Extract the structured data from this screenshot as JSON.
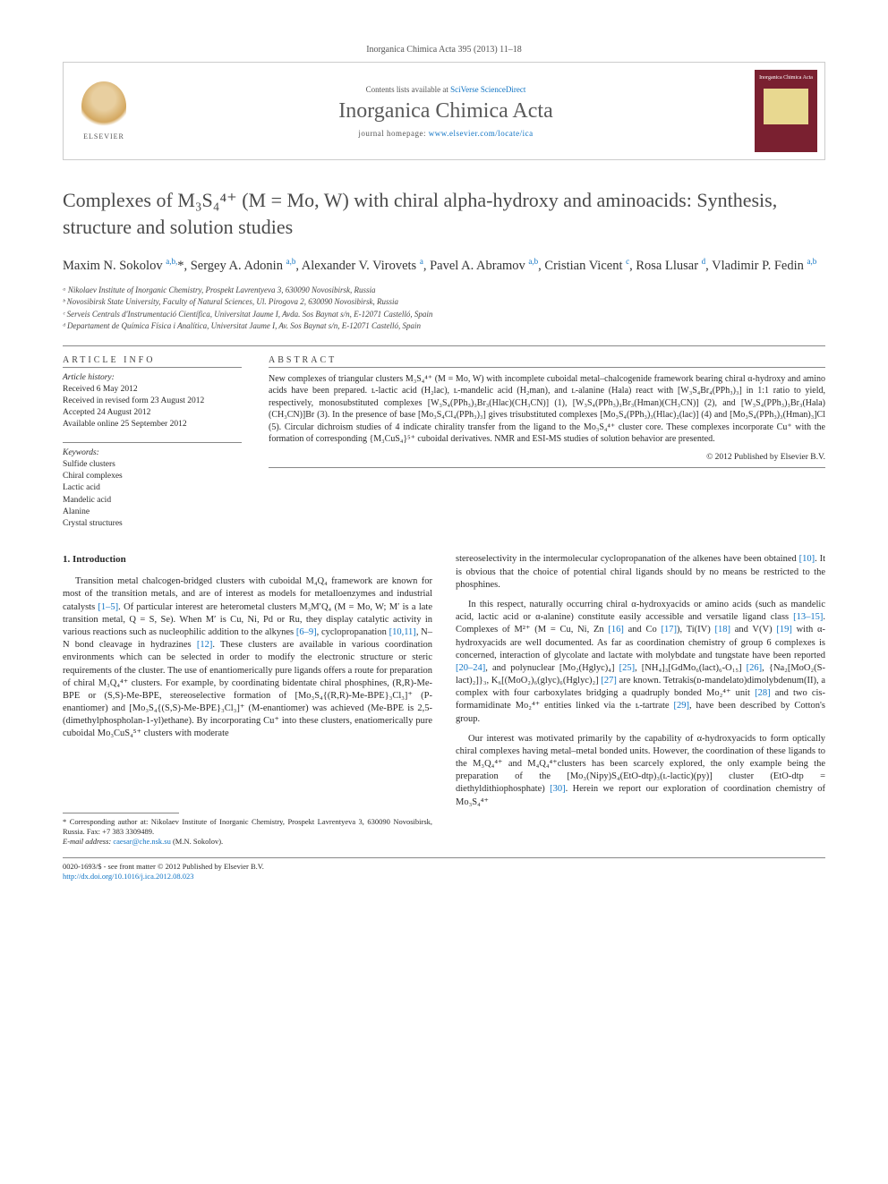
{
  "journal_ref": "Inorganica Chimica Acta 395 (2013) 11–18",
  "header": {
    "elsevier": "ELSEVIER",
    "contents_prefix": "Contents lists available at ",
    "contents_link": "SciVerse ScienceDirect",
    "journal_name": "Inorganica Chimica Acta",
    "homepage_prefix": "journal homepage: ",
    "homepage_link": "www.elsevier.com/locate/ica",
    "cover_title": "Inorganica Chimica Acta"
  },
  "title": "Complexes of M₃S₄⁴⁺ (M = Mo, W) with chiral alpha-hydroxy and aminoacids: Synthesis, structure and solution studies",
  "authors_html": "Maxim N. Sokolov <sup>a,b,</sup>*, Sergey A. Adonin <sup>a,b</sup>, Alexander V. Virovets <sup>a</sup>, Pavel A. Abramov <sup>a,b</sup>, Cristian Vicent <sup>c</sup>, Rosa Llusar <sup>d</sup>, Vladimir P. Fedin <sup>a,b</sup>",
  "affiliations": [
    "ᵃ Nikolaev Institute of Inorganic Chemistry, Prospekt Lavrentyeva 3, 630090 Novosibirsk, Russia",
    "ᵇ Novosibirsk State University, Faculty of Natural Sciences, Ul. Pirogova 2, 630090 Novosibirsk, Russia",
    "ᶜ Serveis Centrals d'Instrumentació Científica, Universitat Jaume I, Avda. Sos Baynat s/n, E-12071 Castelló, Spain",
    "ᵈ Departament de Química Física i Analítica, Universitat Jaume I, Av. Sos Baynat s/n, E-12071 Castelló, Spain"
  ],
  "info": {
    "head": "ARTICLE INFO",
    "history_head": "Article history:",
    "history": "Received 6 May 2012\nReceived in revised form 23 August 2012\nAccepted 24 August 2012\nAvailable online 25 September 2012",
    "keywords_head": "Keywords:",
    "keywords": "Sulfide clusters\nChiral complexes\nLactic acid\nMandelic acid\nAlanine\nCrystal structures"
  },
  "abstract": {
    "head": "ABSTRACT",
    "body": "New complexes of triangular clusters M₃S₄⁴⁺ (M = Mo, W) with incomplete cuboidal metal–chalcogenide framework bearing chiral α-hydroxy and amino acids have been prepared. ʟ-lactic acid (H₂lac), ʟ-mandelic acid (H₂man), and ʟ-alanine (Hala) react with [W₃S₄Br₄(PPh₃)₃] in 1:1 ratio to yield, respectively, monosubstituted complexes [W₃S₄(PPh₃)₃Br₃(Hlac)(CH₃CN)] (1), [W₃S₄(PPh₃)₃Br₃(Hman)(CH₃CN)] (2), and [W₃S₄(PPh₃)₃Br₃(Hala)(CH₃CN)]Br (3). In the presence of base [Mo₃S₄Cl₄(PPh₃)₃] gives trisubstituted complexes [Mo₃S₄(PPh₃)₃(Hlac)₂(lac)] (4) and [Mo₃S₄(PPh₃)₃(Hman)₃]Cl (5). Circular dichroism studies of 4 indicate chirality transfer from the ligand to the Mo₃S₄⁴⁺ cluster core. These complexes incorporate Cu⁺ with the formation of corresponding {M₃CuS₄}⁵⁺ cuboidal derivatives. NMR and ESI-MS studies of solution behavior are presented.",
    "copyright": "© 2012 Published by Elsevier B.V."
  },
  "section1_head": "1. Introduction",
  "col_left_p1": "Transition metal chalcogen-bridged clusters with cuboidal M₄Q₄ framework are known for most of the transition metals, and are of interest as models for metalloenzymes and industrial catalysts [1–5]. Of particular interest are heterometal clusters M₃M′Q₄ (M = Mo, W; M′ is a late transition metal, Q = S, Se). When M′ is Cu, Ni, Pd or Ru, they display catalytic activity in various reactions such as nucleophilic addition to the alkynes [6–9], cyclopropanation [10,11], N–N bond cleavage in hydrazines [12]. These clusters are available in various coordination environments which can be selected in order to modify the electronic structure or steric requirements of the cluster. The use of enantiomerically pure ligands offers a route for preparation of chiral M₃Q₄⁴⁺ clusters. For example, by coordinating bidentate chiral phosphines, (R,R)-Me-BPE or (S,S)-Me-BPE, stereoselective formation of [Mo₃S₄{(R,R)-Me-BPE}₃Cl₃]⁺ (P-enantiomer) and [Mo₃S₄{(S,S)-Me-BPE}₃Cl₃]⁺ (M-enantiomer) was achieved (Me-BPE is 2,5-(dimethylphospholan-1-yl)ethane). By incorporating Cu⁺ into these clusters, enatiomerically pure cuboidal Mo₃CuS₄⁵⁺ clusters with moderate",
  "col_right_p1": "stereoselectivity in the intermolecular cyclopropanation of the alkenes have been obtained [10]. It is obvious that the choice of potential chiral ligands should by no means be restricted to the phosphines.",
  "col_right_p2": "In this respect, naturally occurring chiral α-hydroxyacids or amino acids (such as mandelic acid, lactic acid or α-alanine) constitute easily accessible and versatile ligand class [13–15]. Complexes of M²⁺ (M = Cu, Ni, Zn [16] and Co [17]), Ti(IV) [18] and V(V) [19] with α-hydroxyacids are well documented. As far as coordination chemistry of group 6 complexes is concerned, interaction of glycolate and lactate with molybdate and tungstate have been reported [20–24], and polynuclear [Mo₂(Hglyc)₄] [25], [NH₄]₃[GdMo₆(lact)₆-O₁₅] [26], {Na₂[MoO₂(S-lact)₂]}₃, K₆[(MoO₂)₆(glyc)₆(Hglyc)₂] [27] are known. Tetrakis(ᴅ-mandelato)dimolybdenum(II), a complex with four carboxylates bridging a quadruply bonded Mo₂⁴⁺ unit [28] and two cis-formamidinate Mo₂⁴⁺ entities linked via the ʟ-tartrate [29], have been described by Cotton's group.",
  "col_right_p3": "Our interest was motivated primarily by the capability of α-hydroxyacids to form optically chiral complexes having metal–metal bonded units. However, the coordination of these ligands to the M₃Q₄⁴⁺ and M₄Q₄⁴⁺clusters has been scarcely explored, the only example being the preparation of the [Mo₃(Nipy)S₄(EtO-dtp)₃(ʟ-lactic)(py)] cluster (EtO-dtp = diethyldithiophosphate) [30]. Herein we report our exploration of coordination chemistry of Mo₃S₄⁴⁺",
  "footnote": {
    "corr": "* Corresponding author at: Nikolaev Institute of Inorganic Chemistry, Prospekt Lavrentyeva 3, 630090 Novosibirsk, Russia. Fax: +7 383 3309489.",
    "email_label": "E-mail address: ",
    "email": "caesar@che.nsk.su",
    "email_suffix": " (M.N. Sokolov)."
  },
  "bottom": {
    "line1": "0020-1693/$ - see front matter © 2012 Published by Elsevier B.V.",
    "doi": "http://dx.doi.org/10.1016/j.ica.2012.08.023"
  },
  "colors": {
    "link": "#1074c4",
    "text": "#2a2a2a",
    "cover_bg": "#7a2030"
  }
}
